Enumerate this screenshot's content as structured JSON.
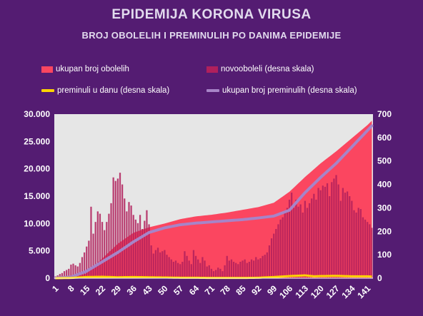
{
  "title": "EPIDEMIJA KORONA VIRUSA",
  "subtitle": "BROJ OBOLELIH I PREMINULIH PO DANIMA EPIDEMIJE",
  "colors": {
    "background": "#541c72",
    "plot_area": "#e6e6e6",
    "cumulative_cases": "#fb4660",
    "new_cases": "#b0205c",
    "daily_deaths": "#ffd400",
    "cumulative_deaths": "#a784c8"
  },
  "chart_data": {
    "type": "bar",
    "xlabel": "",
    "ylabel": "",
    "ylim_left": [
      0,
      30000
    ],
    "ylim_right": [
      0,
      700
    ],
    "x_range": [
      1,
      143
    ],
    "left_ticks": [
      "0",
      "5.000",
      "10.000",
      "15.000",
      "20.000",
      "25.000",
      "30.000"
    ],
    "left_tick_values": [
      0,
      5000,
      10000,
      15000,
      20000,
      25000,
      30000
    ],
    "right_ticks": [
      "0",
      "100",
      "200",
      "300",
      "400",
      "500",
      "600",
      "700"
    ],
    "right_tick_values": [
      0,
      100,
      200,
      300,
      400,
      500,
      600,
      700
    ],
    "x_ticks": [
      "1",
      "8",
      "15",
      "22",
      "29",
      "36",
      "43",
      "50",
      "57",
      "64",
      "71",
      "78",
      "85",
      "92",
      "99",
      "106",
      "113",
      "120",
      "127",
      "134",
      "141"
    ],
    "grid": false,
    "legend_position": "top",
    "series": [
      {
        "name": "ukupan broj obolelih",
        "type": "area",
        "axis": "left",
        "points": [
          [
            1,
            1
          ],
          [
            8,
            50
          ],
          [
            15,
            900
          ],
          [
            22,
            3600
          ],
          [
            29,
            6300
          ],
          [
            36,
            8300
          ],
          [
            43,
            9300
          ],
          [
            50,
            10000
          ],
          [
            57,
            10800
          ],
          [
            64,
            11300
          ],
          [
            71,
            11600
          ],
          [
            78,
            12000
          ],
          [
            85,
            12500
          ],
          [
            92,
            13000
          ],
          [
            99,
            13800
          ],
          [
            106,
            15800
          ],
          [
            113,
            18500
          ],
          [
            120,
            21000
          ],
          [
            127,
            23200
          ],
          [
            134,
            25600
          ],
          [
            141,
            28000
          ],
          [
            143,
            28800
          ]
        ]
      },
      {
        "name": "novooboleli (desna skala)",
        "type": "bar",
        "axis": "right",
        "points": [
          [
            1,
            8
          ],
          [
            2,
            12
          ],
          [
            3,
            18
          ],
          [
            4,
            22
          ],
          [
            5,
            30
          ],
          [
            6,
            35
          ],
          [
            7,
            40
          ],
          [
            8,
            58
          ],
          [
            9,
            62
          ],
          [
            10,
            55
          ],
          [
            11,
            50
          ],
          [
            12,
            65
          ],
          [
            13,
            90
          ],
          [
            14,
            110
          ],
          [
            15,
            135
          ],
          [
            16,
            160
          ],
          [
            17,
            305
          ],
          [
            18,
            190
          ],
          [
            19,
            240
          ],
          [
            20,
            285
          ],
          [
            21,
            275
          ],
          [
            22,
            240
          ],
          [
            23,
            205
          ],
          [
            24,
            240
          ],
          [
            25,
            275
          ],
          [
            26,
            320
          ],
          [
            27,
            430
          ],
          [
            28,
            415
          ],
          [
            29,
            425
          ],
          [
            30,
            450
          ],
          [
            31,
            400
          ],
          [
            32,
            340
          ],
          [
            33,
            285
          ],
          [
            34,
            325
          ],
          [
            35,
            310
          ],
          [
            36,
            270
          ],
          [
            37,
            250
          ],
          [
            38,
            235
          ],
          [
            39,
            270
          ],
          [
            40,
            210
          ],
          [
            41,
            245
          ],
          [
            42,
            290
          ],
          [
            43,
            230
          ],
          [
            44,
            140
          ],
          [
            45,
            105
          ],
          [
            46,
            120
          ],
          [
            47,
            130
          ],
          [
            48,
            110
          ],
          [
            49,
            115
          ],
          [
            50,
            120
          ],
          [
            51,
            100
          ],
          [
            52,
            90
          ],
          [
            53,
            80
          ],
          [
            54,
            70
          ],
          [
            55,
            75
          ],
          [
            56,
            65
          ],
          [
            57,
            60
          ],
          [
            58,
            70
          ],
          [
            59,
            115
          ],
          [
            60,
            95
          ],
          [
            61,
            75
          ],
          [
            62,
            60
          ],
          [
            63,
            120
          ],
          [
            64,
            95
          ],
          [
            65,
            80
          ],
          [
            66,
            65
          ],
          [
            67,
            90
          ],
          [
            68,
            75
          ],
          [
            69,
            50
          ],
          [
            70,
            55
          ],
          [
            71,
            40
          ],
          [
            72,
            30
          ],
          [
            73,
            35
          ],
          [
            74,
            45
          ],
          [
            75,
            40
          ],
          [
            76,
            30
          ],
          [
            77,
            55
          ],
          [
            78,
            95
          ],
          [
            79,
            75
          ],
          [
            80,
            80
          ],
          [
            81,
            70
          ],
          [
            82,
            65
          ],
          [
            83,
            60
          ],
          [
            84,
            70
          ],
          [
            85,
            75
          ],
          [
            86,
            80
          ],
          [
            87,
            65
          ],
          [
            88,
            70
          ],
          [
            89,
            80
          ],
          [
            90,
            75
          ],
          [
            91,
            90
          ],
          [
            92,
            80
          ],
          [
            93,
            85
          ],
          [
            94,
            95
          ],
          [
            95,
            100
          ],
          [
            96,
            110
          ],
          [
            97,
            140
          ],
          [
            98,
            170
          ],
          [
            99,
            190
          ],
          [
            100,
            210
          ],
          [
            101,
            230
          ],
          [
            102,
            250
          ],
          [
            103,
            260
          ],
          [
            104,
            285
          ],
          [
            105,
            300
          ],
          [
            106,
            335
          ],
          [
            107,
            365
          ],
          [
            108,
            300
          ],
          [
            109,
            335
          ],
          [
            110,
            305
          ],
          [
            111,
            315
          ],
          [
            112,
            280
          ],
          [
            113,
            330
          ],
          [
            114,
            300
          ],
          [
            115,
            320
          ],
          [
            116,
            340
          ],
          [
            117,
            360
          ],
          [
            118,
            335
          ],
          [
            119,
            385
          ],
          [
            120,
            375
          ],
          [
            121,
            395
          ],
          [
            122,
            390
          ],
          [
            123,
            405
          ],
          [
            124,
            350
          ],
          [
            125,
            410
          ],
          [
            126,
            425
          ],
          [
            127,
            440
          ],
          [
            128,
            400
          ],
          [
            129,
            330
          ],
          [
            130,
            385
          ],
          [
            131,
            365
          ],
          [
            132,
            370
          ],
          [
            133,
            350
          ],
          [
            134,
            330
          ],
          [
            135,
            290
          ],
          [
            136,
            280
          ],
          [
            137,
            300
          ],
          [
            138,
            295
          ],
          [
            139,
            260
          ],
          [
            140,
            250
          ],
          [
            141,
            240
          ],
          [
            142,
            230
          ],
          [
            143,
            215
          ]
        ]
      },
      {
        "name": "preminuli u danu (desna skala)",
        "type": "line",
        "axis": "right",
        "points": [
          [
            1,
            0
          ],
          [
            8,
            1
          ],
          [
            15,
            5
          ],
          [
            22,
            6
          ],
          [
            29,
            4
          ],
          [
            36,
            5
          ],
          [
            43,
            4
          ],
          [
            50,
            3
          ],
          [
            57,
            2
          ],
          [
            64,
            2
          ],
          [
            71,
            1
          ],
          [
            78,
            1
          ],
          [
            85,
            1
          ],
          [
            92,
            2
          ],
          [
            99,
            5
          ],
          [
            104,
            8
          ],
          [
            108,
            10
          ],
          [
            113,
            12
          ],
          [
            117,
            8
          ],
          [
            120,
            9
          ],
          [
            127,
            10
          ],
          [
            134,
            8
          ],
          [
            141,
            8
          ],
          [
            143,
            7
          ]
        ]
      },
      {
        "name": "ukupan broj preminulih (desna skala)",
        "type": "line",
        "axis": "right",
        "points": [
          [
            1,
            1
          ],
          [
            8,
            5
          ],
          [
            15,
            30
          ],
          [
            22,
            70
          ],
          [
            29,
            110
          ],
          [
            36,
            155
          ],
          [
            43,
            195
          ],
          [
            50,
            215
          ],
          [
            57,
            228
          ],
          [
            64,
            235
          ],
          [
            71,
            240
          ],
          [
            78,
            245
          ],
          [
            85,
            250
          ],
          [
            92,
            257
          ],
          [
            99,
            265
          ],
          [
            106,
            290
          ],
          [
            113,
            365
          ],
          [
            120,
            430
          ],
          [
            127,
            490
          ],
          [
            134,
            560
          ],
          [
            141,
            630
          ],
          [
            143,
            650
          ]
        ]
      }
    ]
  }
}
